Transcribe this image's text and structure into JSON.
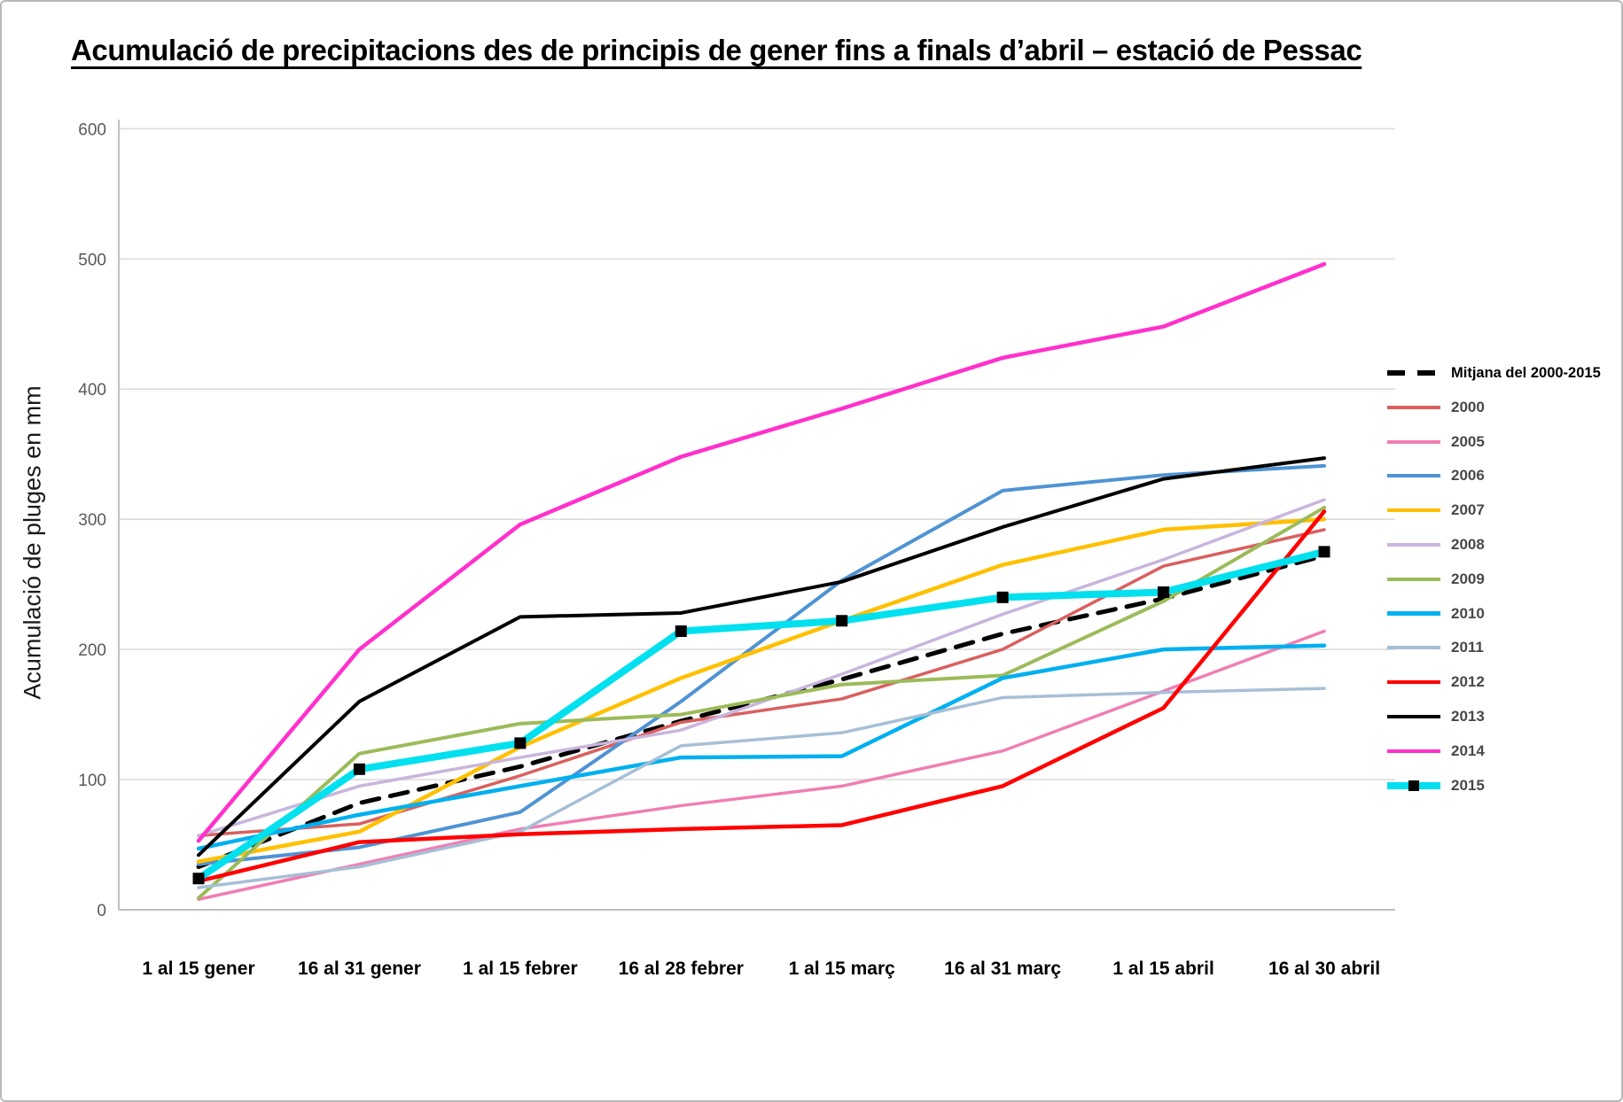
{
  "title": "Acumulació de precipitacions des de principis de gener fins a finals d’abril – estació de Pessac",
  "y_axis": {
    "label": "Acumulació  de pluges en mm",
    "ticks": [
      0,
      100,
      200,
      300,
      400,
      500,
      600
    ],
    "tick_color": "#595959"
  },
  "x_axis": {
    "categories": [
      "1 al 15 gener",
      "16 al 31 gener",
      "1 al 15 febrer",
      "16 al 28 febrer",
      "1 al 15 març",
      "16 al 31 març",
      "1 al 15 abril",
      "16 al 30 abril"
    ]
  },
  "chart_data": {
    "type": "line",
    "title": "Acumulació de precipitacions des de principis de gener fins a finals d’abril – estació de Pessac",
    "xlabel": "",
    "ylabel": "Acumulació  de pluges en mm",
    "ylim": [
      0,
      600
    ],
    "grid": true,
    "legend_position": "right",
    "categories": [
      "1 al 15 gener",
      "16 al 31 gener",
      "1 al 15 febrer",
      "16 al 28 febrer",
      "1 al 15 març",
      "16 al 31 març",
      "1 al 15 abril",
      "16 al 30 abril"
    ],
    "series": [
      {
        "name": "Mitjana del 2000-2015",
        "color": "#000000",
        "dash": "dashed",
        "width": 5,
        "values": [
          33,
          82,
          110,
          145,
          177,
          212,
          239,
          272
        ]
      },
      {
        "name": "2000",
        "color": "#d9605f",
        "dash": "solid",
        "width": 3.5,
        "values": [
          57,
          66,
          103,
          144,
          162,
          200,
          264,
          292
        ]
      },
      {
        "name": "2005",
        "color": "#f07eb2",
        "dash": "solid",
        "width": 3.5,
        "values": [
          8,
          35,
          62,
          80,
          95,
          122,
          168,
          214
        ]
      },
      {
        "name": "2006",
        "color": "#4f93d4",
        "dash": "solid",
        "width": 4,
        "values": [
          35,
          48,
          75,
          160,
          253,
          322,
          334,
          341
        ]
      },
      {
        "name": "2007",
        "color": "#ffc000",
        "dash": "solid",
        "width": 4.5,
        "values": [
          37,
          60,
          125,
          178,
          222,
          265,
          292,
          300
        ]
      },
      {
        "name": "2008",
        "color": "#c9b5dc",
        "dash": "solid",
        "width": 3.5,
        "values": [
          57,
          95,
          117,
          138,
          181,
          227,
          269,
          315
        ]
      },
      {
        "name": "2009",
        "color": "#9bbb59",
        "dash": "solid",
        "width": 4,
        "values": [
          9,
          120,
          143,
          150,
          173,
          180,
          237,
          309
        ]
      },
      {
        "name": "2010",
        "color": "#00b0f0",
        "dash": "solid",
        "width": 4.5,
        "values": [
          47,
          73,
          95,
          117,
          118,
          178,
          200,
          203
        ]
      },
      {
        "name": "2011",
        "color": "#a7bfd6",
        "dash": "solid",
        "width": 3.5,
        "values": [
          17,
          33,
          60,
          126,
          136,
          163,
          167,
          170
        ]
      },
      {
        "name": "2012",
        "color": "#ff0000",
        "dash": "solid",
        "width": 4.5,
        "values": [
          22,
          52,
          58,
          62,
          65,
          95,
          155,
          306
        ]
      },
      {
        "name": "2013",
        "color": "#000000",
        "dash": "solid",
        "width": 4,
        "values": [
          42,
          160,
          225,
          228,
          252,
          294,
          331,
          347
        ]
      },
      {
        "name": "2014",
        "color": "#ff30cc",
        "dash": "solid",
        "width": 4.5,
        "values": [
          53,
          200,
          296,
          348,
          385,
          424,
          448,
          496
        ]
      },
      {
        "name": "2015",
        "color": "#00e0ee",
        "dash": "solid",
        "width": 8,
        "markers": "black-square",
        "values": [
          24,
          108,
          128,
          214,
          222,
          240,
          244,
          275
        ]
      }
    ]
  },
  "legend": {
    "items": [
      "Mitjana del 2000-2015",
      "2000",
      "2005",
      "2006",
      "2007",
      "2008",
      "2009",
      "2010",
      "2011",
      "2012",
      "2013",
      "2014",
      "2015"
    ]
  }
}
